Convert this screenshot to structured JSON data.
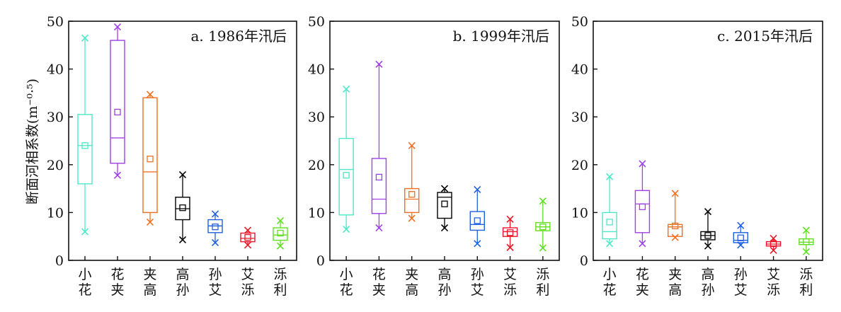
{
  "chart_data": {
    "type": "box",
    "ylabel": "断面河相系数(m⁻⁰·⁵)",
    "ylim": [
      0,
      50
    ],
    "yticks": [
      0,
      10,
      20,
      30,
      40,
      50
    ],
    "categories": [
      "小花",
      "花夹",
      "夹高",
      "高孙",
      "孙艾",
      "艾泺",
      "泺利"
    ],
    "category_colors": [
      "#4de8c8",
      "#a040e8",
      "#f07020",
      "#000000",
      "#2060e0",
      "#e81828",
      "#60e020"
    ],
    "panels": [
      {
        "title": "a. 1986年汛后",
        "boxes": [
          {
            "min": 6.0,
            "q1": 16.0,
            "median": 24.0,
            "q3": 30.5,
            "max": 46.5,
            "mean": 24.0
          },
          {
            "min": 17.8,
            "q1": 20.3,
            "median": 25.6,
            "q3": 46.0,
            "max": 48.8,
            "mean": 31.0
          },
          {
            "min": 8.0,
            "q1": 10.0,
            "median": 18.5,
            "q3": 34.0,
            "max": 34.7,
            "mean": 21.2
          },
          {
            "min": 4.3,
            "q1": 8.5,
            "median": 10.8,
            "q3": 13.2,
            "max": 17.9,
            "mean": 11.0
          },
          {
            "min": 3.7,
            "q1": 5.8,
            "median": 7.2,
            "q3": 8.5,
            "max": 9.7,
            "mean": 7.0
          },
          {
            "min": 3.2,
            "q1": 3.9,
            "median": 4.6,
            "q3": 5.7,
            "max": 6.3,
            "mean": 4.8
          },
          {
            "min": 3.0,
            "q1": 4.2,
            "median": 5.3,
            "q3": 6.8,
            "max": 8.3,
            "mean": 5.7
          }
        ]
      },
      {
        "title": "b. 1999年汛后",
        "boxes": [
          {
            "min": 6.5,
            "q1": 9.5,
            "median": 19.0,
            "q3": 25.5,
            "max": 35.8,
            "mean": 17.8
          },
          {
            "min": 6.8,
            "q1": 9.8,
            "median": 12.8,
            "q3": 21.3,
            "max": 41.0,
            "mean": 17.4
          },
          {
            "min": 8.8,
            "q1": 10.0,
            "median": 12.8,
            "q3": 15.0,
            "max": 24.0,
            "mean": 13.8
          },
          {
            "min": 6.8,
            "q1": 8.8,
            "median": 13.2,
            "q3": 14.2,
            "max": 15.0,
            "mean": 11.8
          },
          {
            "min": 3.5,
            "q1": 6.3,
            "median": 7.5,
            "q3": 10.2,
            "max": 14.8,
            "mean": 8.3
          },
          {
            "min": 2.7,
            "q1": 5.0,
            "median": 6.0,
            "q3": 6.8,
            "max": 8.6,
            "mean": 5.8
          },
          {
            "min": 2.6,
            "q1": 6.2,
            "median": 7.0,
            "q3": 7.9,
            "max": 12.4,
            "mean": 7.0
          }
        ]
      },
      {
        "title": "c. 2015年汛后",
        "boxes": [
          {
            "min": 3.5,
            "q1": 4.5,
            "median": 6.0,
            "q3": 10.0,
            "max": 17.5,
            "mean": 8.0
          },
          {
            "min": 3.5,
            "q1": 5.8,
            "median": 11.8,
            "q3": 14.6,
            "max": 20.2,
            "mean": 11.2
          },
          {
            "min": 4.8,
            "q1": 5.0,
            "median": 7.0,
            "q3": 7.5,
            "max": 14.0,
            "mean": 7.2
          },
          {
            "min": 3.0,
            "q1": 4.3,
            "median": 5.2,
            "q3": 6.0,
            "max": 10.2,
            "mean": 5.2
          },
          {
            "min": 3.2,
            "q1": 3.7,
            "median": 4.2,
            "q3": 5.8,
            "max": 7.3,
            "mean": 4.7
          },
          {
            "min": 2.1,
            "q1": 3.0,
            "median": 3.4,
            "q3": 3.9,
            "max": 4.6,
            "mean": 3.5
          },
          {
            "min": 1.8,
            "q1": 3.3,
            "median": 3.8,
            "q3": 4.5,
            "max": 6.3,
            "mean": 3.9
          }
        ]
      }
    ]
  }
}
